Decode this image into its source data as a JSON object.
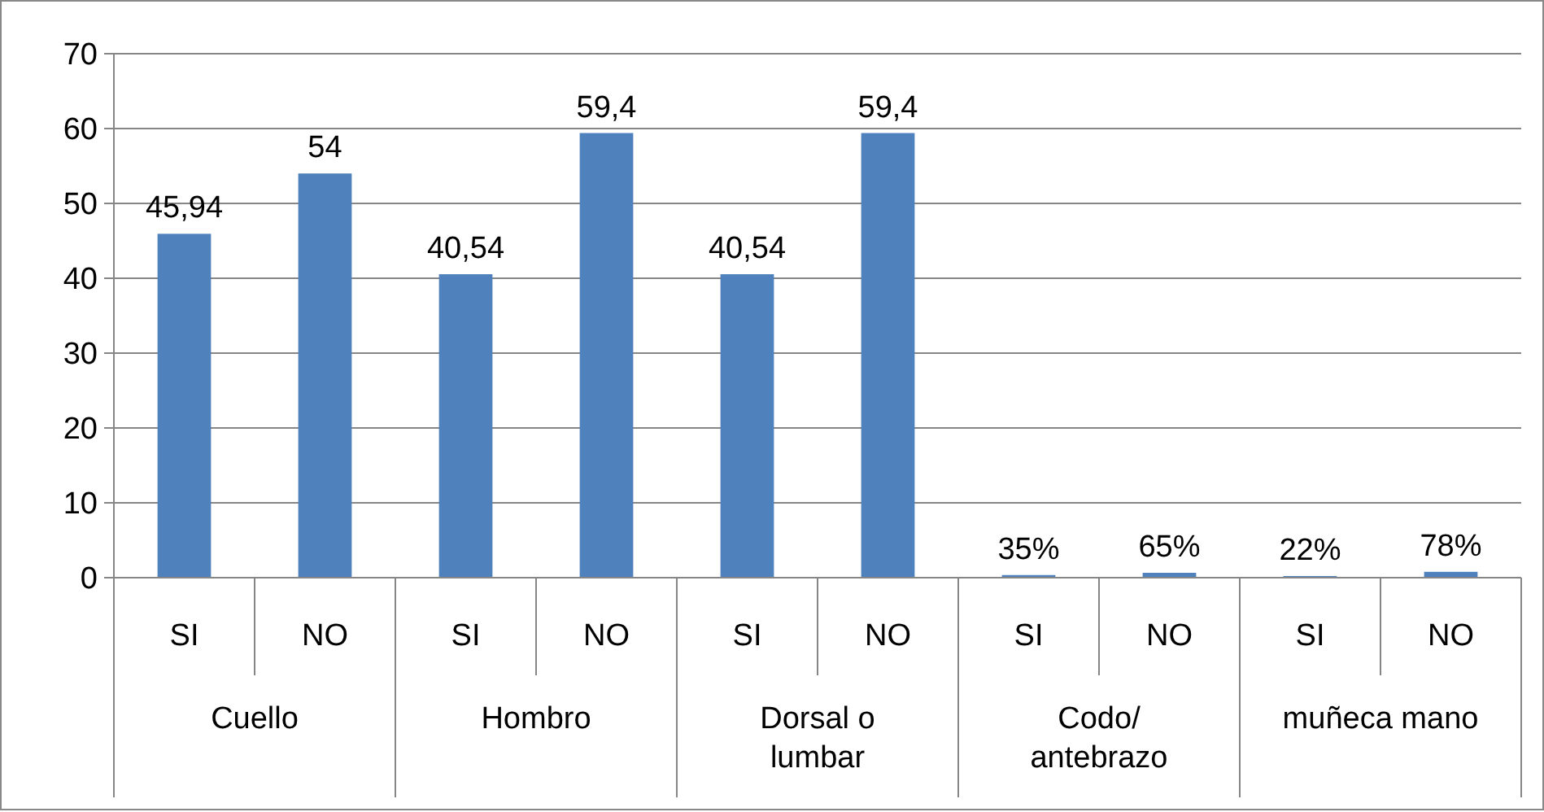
{
  "chart_data": {
    "type": "bar",
    "categories": [
      "SI",
      "NO",
      "SI",
      "NO",
      "SI",
      "NO",
      "SI",
      "NO",
      "SI",
      "NO"
    ],
    "values": [
      45.94,
      54,
      40.54,
      59.4,
      40.54,
      59.4,
      0.35,
      0.65,
      0.22,
      0.78
    ],
    "value_labels": [
      "45,94",
      "54",
      "40,54",
      "59,4",
      "40,54",
      "59,4",
      "35%",
      "65%",
      "22%",
      "78%"
    ],
    "color": "#4f81bd",
    "annotations": [
      "Cuello",
      "Hombro",
      "Dorsal o lumbar",
      "Codo/ antebrazo",
      "muñeca mano"
    ],
    "ylim": [
      0,
      70
    ],
    "yticks": [
      0,
      10,
      20,
      30,
      40,
      50,
      60,
      70
    ],
    "grid": "y"
  }
}
